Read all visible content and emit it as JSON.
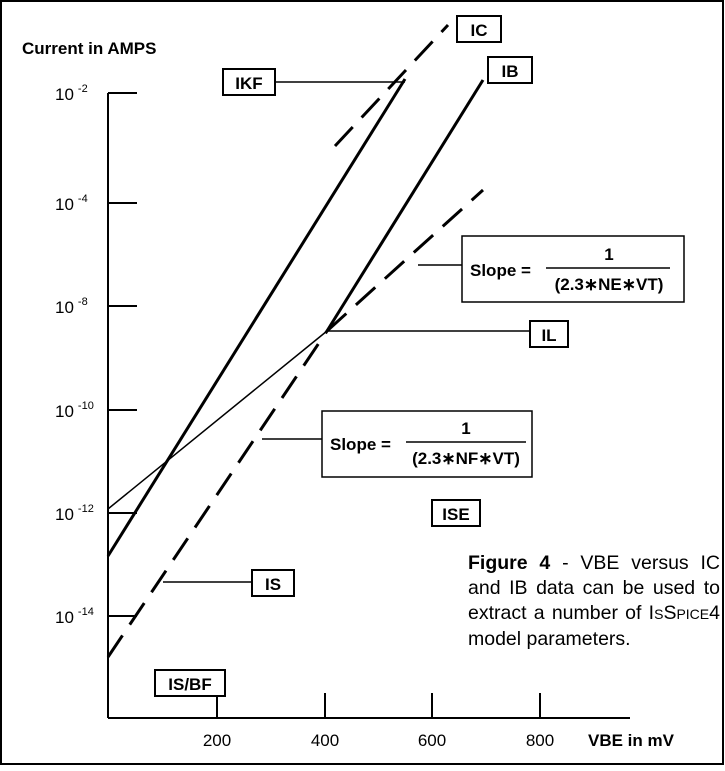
{
  "axes": {
    "ylabel": "Current in AMPS",
    "xlabel": "VBE in mV",
    "x_ticks": [
      "200",
      "400",
      "600",
      "800"
    ],
    "y_ticks": [
      {
        "base": "10",
        "exp": "-2"
      },
      {
        "base": "10",
        "exp": "-4"
      },
      {
        "base": "10",
        "exp": "-8"
      },
      {
        "base": "10",
        "exp": "-10"
      },
      {
        "base": "10",
        "exp": "-12"
      },
      {
        "base": "10",
        "exp": "-14"
      }
    ]
  },
  "labels": {
    "ic": "IC",
    "ib": "IB",
    "ikf": "IKF",
    "il": "IL",
    "is": "IS",
    "is_bf": "IS/BF",
    "ise": "ISE"
  },
  "slopes": {
    "ne": {
      "prefix": "Slope =",
      "numerator": "1",
      "denominator": "(2.3∗NE∗VT)"
    },
    "nf": {
      "prefix": "Slope =",
      "numerator": "1",
      "denominator": "(2.3∗NF∗VT)"
    }
  },
  "caption": {
    "figure": "Figure 4",
    "line1": " - VBE versus IC and IB data can be used to extract a number of ",
    "prog_first": "I",
    "prog_small1": "S",
    "prog_mid": "S",
    "prog_small2": "PICE",
    "prog_end": "4",
    "line2": " model parameters."
  }
}
